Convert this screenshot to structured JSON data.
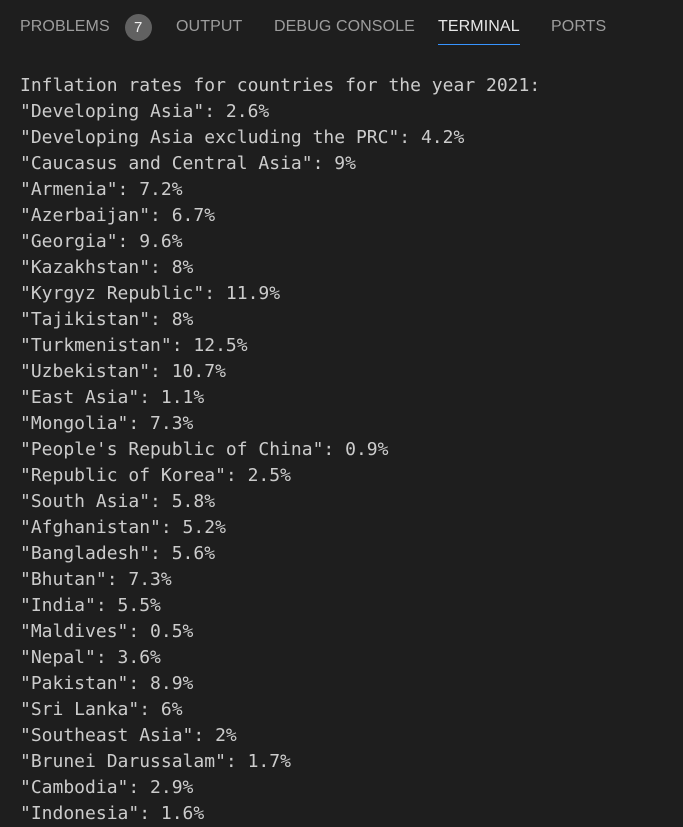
{
  "panel": {
    "tabs": [
      {
        "label": "PROBLEMS",
        "badge": "7"
      },
      {
        "label": "OUTPUT"
      },
      {
        "label": "DEBUG CONSOLE"
      },
      {
        "label": "TERMINAL"
      },
      {
        "label": "PORTS"
      }
    ],
    "active_tab": "TERMINAL"
  },
  "terminal": {
    "lines": [
      "Inflation rates for countries for the year 2021:",
      "\"Developing Asia\": 2.6%",
      "\"Developing Asia excluding the PRC\": 4.2%",
      "\"Caucasus and Central Asia\": 9%",
      "\"Armenia\": 7.2%",
      "\"Azerbaijan\": 6.7%",
      "\"Georgia\": 9.6%",
      "\"Kazakhstan\": 8%",
      "\"Kyrgyz Republic\": 11.9%",
      "\"Tajikistan\": 8%",
      "\"Turkmenistan\": 12.5%",
      "\"Uzbekistan\": 10.7%",
      "\"East Asia\": 1.1%",
      "\"Mongolia\": 7.3%",
      "\"People's Republic of China\": 0.9%",
      "\"Republic of Korea\": 2.5%",
      "\"South Asia\": 5.8%",
      "\"Afghanistan\": 5.2%",
      "\"Bangladesh\": 5.6%",
      "\"Bhutan\": 7.3%",
      "\"India\": 5.5%",
      "\"Maldives\": 0.5%",
      "\"Nepal\": 3.6%",
      "\"Pakistan\": 8.9%",
      "\"Sri Lanka\": 6%",
      "\"Southeast Asia\": 2%",
      "\"Brunei Darussalam\": 1.7%",
      "\"Cambodia\": 2.9%",
      "\"Indonesia\": 1.6%"
    ]
  }
}
